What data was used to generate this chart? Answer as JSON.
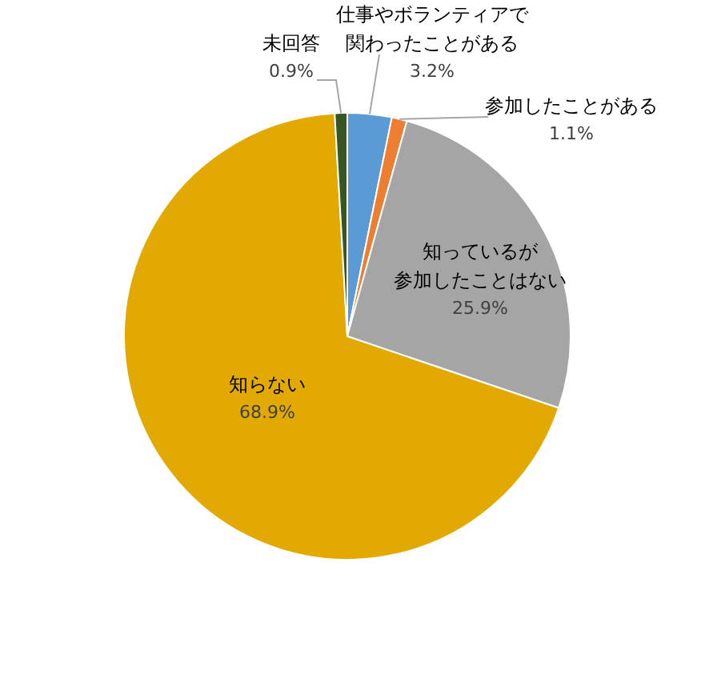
{
  "chart_data": {
    "type": "pie",
    "categories": [
      "仕事やボランティアで関わったことがある",
      "参加したことがある",
      "知っているが参加したことはない",
      "知らない",
      "未回答"
    ],
    "values": [
      3.2,
      1.1,
      25.9,
      68.9,
      0.9
    ],
    "colors": [
      "#5b9bd5",
      "#ed7d31",
      "#a5a5a5",
      "#e2a900",
      "#375623"
    ],
    "value_labels": [
      "3.2%",
      "1.1%",
      "25.9%",
      "68.9%",
      "0.9%"
    ],
    "legend": false
  }
}
